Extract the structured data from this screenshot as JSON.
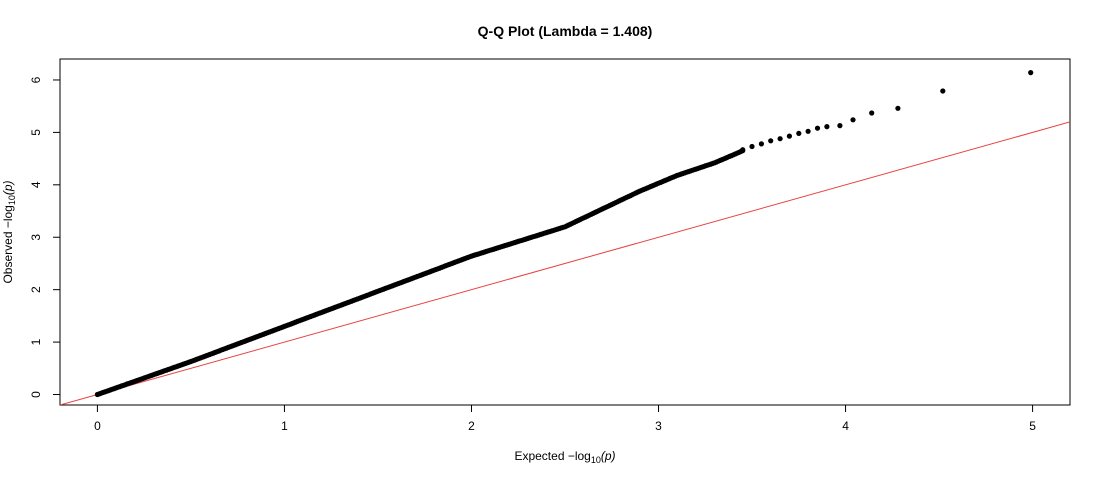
{
  "chart_data": {
    "type": "scatter",
    "title": "Q-Q Plot (Lambda = 1.408)",
    "xlabel": {
      "prefix": "Expected  −log",
      "subscript": "10",
      "suffix": "(p)"
    },
    "ylabel": {
      "prefix": "Observed  −log",
      "subscript": "10",
      "suffix": "(p)"
    },
    "xlim": [
      -0.2,
      5.2
    ],
    "ylim": [
      -0.2,
      6.4
    ],
    "x_ticks": [
      0,
      1,
      2,
      3,
      4,
      5
    ],
    "y_ticks": [
      0,
      1,
      2,
      3,
      4,
      5,
      6
    ],
    "x_tick_labels": [
      "0",
      "1",
      "2",
      "3",
      "4",
      "5"
    ],
    "y_tick_labels": [
      "0",
      "1",
      "2",
      "3",
      "4",
      "5",
      "6"
    ],
    "grid": false,
    "legend": "none",
    "reference_line": {
      "slope": 1,
      "intercept": 0,
      "color": "#e8413f"
    },
    "point_color": "#000000",
    "curve": [
      [
        0,
        0
      ],
      [
        0.5,
        0.63
      ],
      [
        1,
        1.3
      ],
      [
        1.5,
        1.97
      ],
      [
        2,
        2.64
      ],
      [
        2.5,
        3.2
      ],
      [
        2.7,
        3.54
      ],
      [
        2.9,
        3.88
      ],
      [
        3.1,
        4.18
      ],
      [
        3.3,
        4.42
      ],
      [
        3.45,
        4.65
      ]
    ],
    "tail_points": [
      [
        3.45,
        4.67
      ],
      [
        3.5,
        4.73
      ],
      [
        3.55,
        4.78
      ],
      [
        3.6,
        4.84
      ],
      [
        3.65,
        4.88
      ],
      [
        3.7,
        4.93
      ],
      [
        3.75,
        4.98
      ],
      [
        3.8,
        5.02
      ],
      [
        3.85,
        5.08
      ],
      [
        3.9,
        5.11
      ],
      [
        3.97,
        5.13
      ],
      [
        4.04,
        5.24
      ],
      [
        4.14,
        5.37
      ],
      [
        4.28,
        5.46
      ],
      [
        4.52,
        5.79
      ],
      [
        4.99,
        6.14
      ]
    ]
  }
}
